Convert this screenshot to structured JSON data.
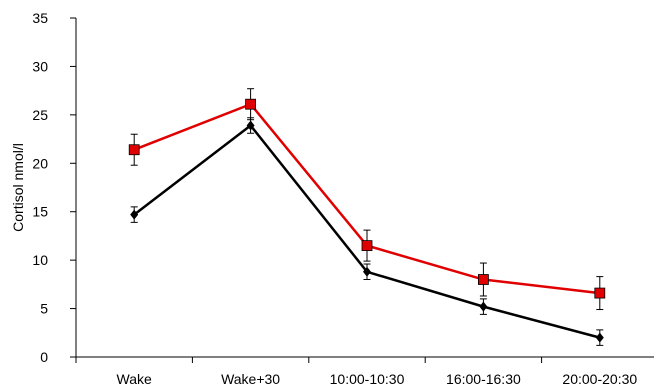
{
  "chart_data": {
    "type": "line",
    "title": "",
    "xlabel": "",
    "ylabel": "Cortisol nmol/l",
    "categories": [
      "Wake",
      "Wake+30",
      "10:00-10:30",
      "16:00-16:30",
      "20:00-20:30"
    ],
    "ylim": [
      0,
      35
    ],
    "yticks": [
      "0",
      "5",
      "10",
      "15",
      "20",
      "25",
      "30",
      "35"
    ],
    "grid": false,
    "legend": "none",
    "series": [
      {
        "color": "#e00000",
        "marker": "square",
        "values": [
          21.4,
          26.1,
          11.5,
          8.0,
          6.6
        ],
        "error": [
          1.6,
          1.6,
          1.6,
          1.7,
          1.7
        ]
      },
      {
        "color": "#000000",
        "marker": "diamond",
        "values": [
          14.7,
          23.9,
          8.8,
          5.2,
          2.0
        ],
        "error": [
          0.8,
          0.8,
          0.8,
          0.8,
          0.8
        ]
      }
    ]
  }
}
